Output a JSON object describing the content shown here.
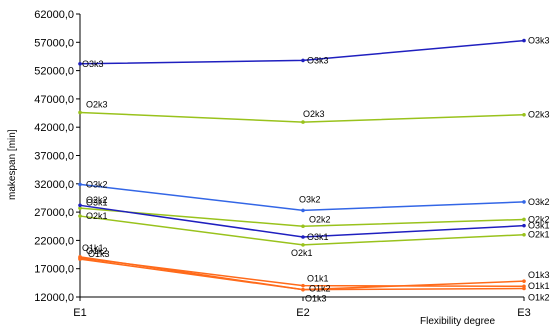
{
  "chart_data": {
    "type": "line",
    "title": "",
    "xlabel": "Flexibility degree",
    "ylabel": "makespan [min]",
    "categories": [
      "E1",
      "E2",
      "E3"
    ],
    "ylim": [
      12000,
      62000
    ],
    "yticks": [
      "12000,0",
      "17000,0",
      "22000,0",
      "27000,0",
      "32000,0",
      "37000,0",
      "42000,0",
      "47000,0",
      "52000,0",
      "57000,0",
      "62000,0"
    ],
    "ytick_values": [
      12000,
      17000,
      22000,
      27000,
      32000,
      37000,
      42000,
      47000,
      52000,
      57000,
      62000
    ],
    "grid": false,
    "legend": "none",
    "series": [
      {
        "name": "O3k3",
        "color": "#1f1fbf",
        "values": [
          53200,
          53800,
          57300
        ]
      },
      {
        "name": "O2k3",
        "color": "#99c21c",
        "values": [
          44600,
          42900,
          44200
        ]
      },
      {
        "name": "O3k2",
        "color": "#3366e6",
        "values": [
          31900,
          27300,
          28800
        ]
      },
      {
        "name": "O2k2",
        "color": "#99c21c",
        "values": [
          27700,
          24500,
          25700
        ]
      },
      {
        "name": "O3k1",
        "color": "#1f1fbf",
        "values": [
          28200,
          22600,
          24600
        ]
      },
      {
        "name": "O2k1",
        "color": "#99c21c",
        "values": [
          26300,
          21200,
          23000
        ]
      },
      {
        "name": "O1k3",
        "color": "#ff6a1a",
        "values": [
          19100,
          13300,
          14800
        ]
      },
      {
        "name": "O1k1",
        "color": "#ff6a1a",
        "values": [
          18900,
          14000,
          13900
        ]
      },
      {
        "name": "O1k2",
        "color": "#ff6a1a",
        "values": [
          18700,
          13300,
          13500
        ]
      }
    ],
    "point_labels": [
      [
        "O3k3",
        "O3k3",
        "O3k3"
      ],
      [
        "O2k3",
        "O2k3",
        "O2k3"
      ],
      [
        "O3k2",
        "O3k2",
        "O3k2"
      ],
      [
        "O2k2",
        "O2k2",
        "O2k2"
      ],
      [
        "O3k1",
        "O3k1",
        "O3k1"
      ],
      [
        "O2k1",
        "O2k1",
        "O2k1"
      ],
      [
        "O1k3",
        "O1k3",
        "O1k3"
      ],
      [
        "O1k1",
        "O1k1",
        "O1k1"
      ],
      [
        "O1k2",
        "O1k2",
        "O1k2"
      ]
    ]
  }
}
